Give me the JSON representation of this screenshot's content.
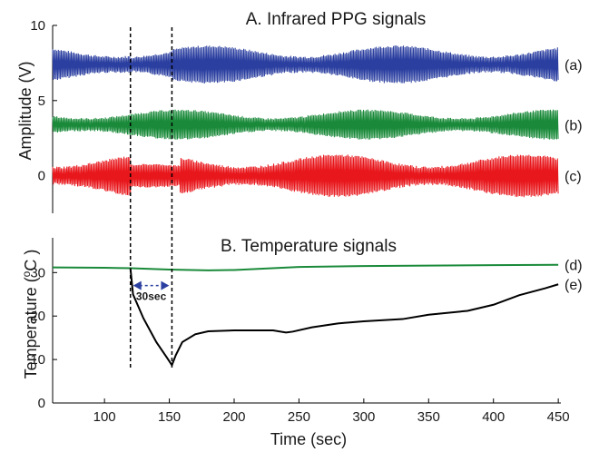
{
  "chart_data": [
    {
      "type": "line",
      "title": "A. Infrared PPG signals",
      "xlabel": "",
      "ylabel": "Amplitude (V)",
      "xlim": [
        60,
        452
      ],
      "ylim": [
        -2.5,
        10
      ],
      "yticks": [
        0,
        5,
        10
      ],
      "grid": false,
      "series": [
        {
          "label": "(a)",
          "color": "#2b3fa0",
          "center": 7.4,
          "amplitude": 1.2
        },
        {
          "label": "(b)",
          "color": "#1a8a3a",
          "center": 3.4,
          "amplitude": 0.95
        },
        {
          "label": "(c)",
          "color": "#e8171c",
          "center": 0.0,
          "amplitude": 1.35
        }
      ],
      "markers": [
        {
          "x": 120
        },
        {
          "x": 152
        }
      ]
    },
    {
      "type": "line",
      "title": "B. Temperature signals",
      "xlabel": "Time (sec)",
      "ylabel_parts": [
        "Temperature  (",
        "o",
        "C )"
      ],
      "xlim": [
        60,
        452
      ],
      "ylim": [
        0,
        38
      ],
      "xticks": [
        100,
        150,
        200,
        250,
        300,
        350,
        400,
        450
      ],
      "yticks": [
        0,
        10,
        20,
        30
      ],
      "grid": false,
      "series": [
        {
          "label": "(d)",
          "color": "#1a8a3a",
          "x": [
            60,
            100,
            120,
            150,
            180,
            200,
            250,
            300,
            350,
            400,
            450
          ],
          "y": [
            31.2,
            31.1,
            31.0,
            30.7,
            30.5,
            30.6,
            31.3,
            31.5,
            31.6,
            31.7,
            31.8
          ]
        },
        {
          "label": "(e)",
          "color": "#000000",
          "x": [
            60,
            100,
            118,
            120,
            122,
            130,
            140,
            148,
            152,
            155,
            160,
            170,
            180,
            200,
            230,
            240,
            245,
            260,
            280,
            300,
            330,
            350,
            380,
            400,
            420,
            440,
            450
          ],
          "y": [
            null,
            null,
            null,
            31.0,
            25.0,
            19.5,
            14.0,
            10.5,
            8.7,
            11.0,
            14.0,
            15.8,
            16.5,
            16.7,
            16.7,
            16.2,
            16.4,
            17.4,
            18.3,
            18.8,
            19.3,
            20.3,
            21.2,
            22.6,
            24.8,
            26.4,
            27.3
          ]
        }
      ],
      "markers": [
        {
          "x": 120
        },
        {
          "x": 152
        }
      ],
      "annotation": {
        "text": "30sec",
        "x_from": 120,
        "x_to": 152,
        "y": 27
      }
    }
  ]
}
